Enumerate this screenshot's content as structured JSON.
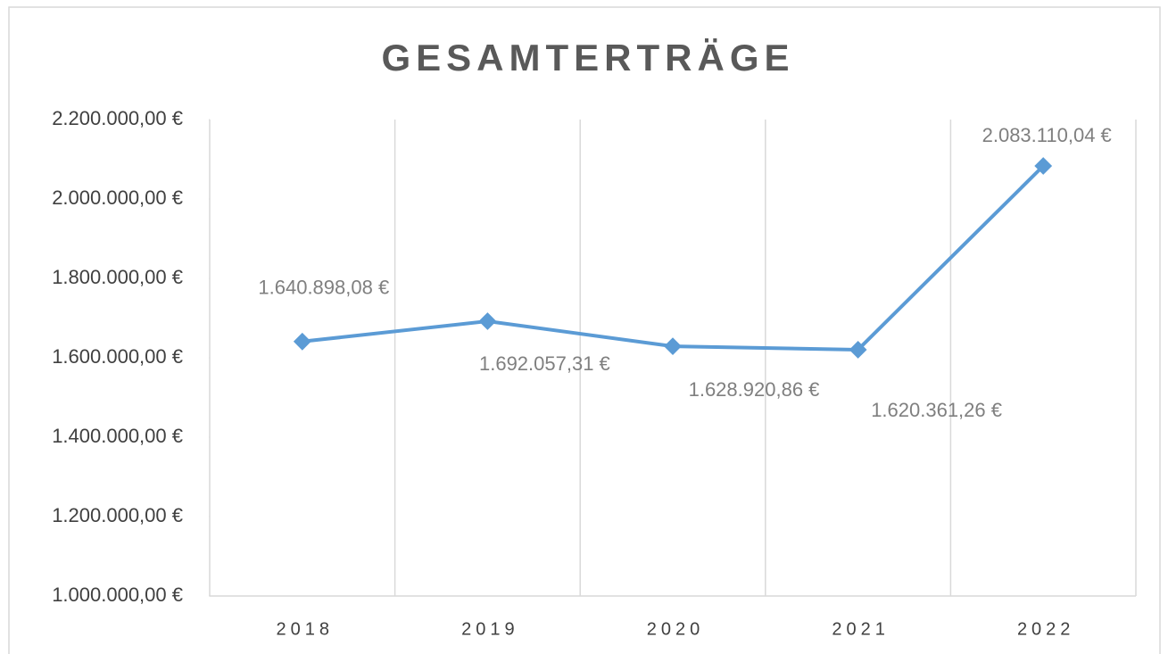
{
  "chart_data": {
    "type": "line",
    "title": "GESAMTERTRÄGE",
    "categories": [
      "2018",
      "2019",
      "2020",
      "2021",
      "2022"
    ],
    "series": [
      {
        "name": "Gesamterträge",
        "color": "#5b9bd5",
        "values": [
          1640898.08,
          1692057.31,
          1628920.86,
          1620361.26,
          2083110.04
        ],
        "value_labels": [
          "1.640.898,08 €",
          "1.692.057,31 €",
          "1.628.920,86 €",
          "1.620.361,26 €",
          "2.083.110,04 €"
        ]
      }
    ],
    "ylim": [
      1000000,
      2200000
    ],
    "yticks": [
      {
        "value": 1000000,
        "label": "1.000.000,00 €"
      },
      {
        "value": 1200000,
        "label": "1.200.000,00 €"
      },
      {
        "value": 1400000,
        "label": "1.400.000,00 €"
      },
      {
        "value": 1600000,
        "label": "1.600.000,00 €"
      },
      {
        "value": 1800000,
        "label": "1.800.000,00 €"
      },
      {
        "value": 2000000,
        "label": "2.000.000,00 €"
      },
      {
        "value": 2200000,
        "label": "2.200.000,00 €"
      }
    ],
    "grid": "x"
  }
}
